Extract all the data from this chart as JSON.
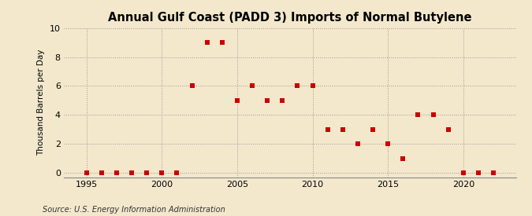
{
  "title": "Annual Gulf Coast (PADD 3) Imports of Normal Butylene",
  "ylabel": "Thousand Barrels per Day",
  "source": "Source: U.S. Energy Information Administration",
  "background_color": "#f3e8cc",
  "plot_bg_color": "#f3e8cc",
  "marker_color": "#cc0000",
  "marker_size": 16,
  "xlim": [
    1993.5,
    2023.5
  ],
  "ylim": [
    -0.3,
    10
  ],
  "yticks": [
    0,
    2,
    4,
    6,
    8,
    10
  ],
  "xticks": [
    1995,
    2000,
    2005,
    2010,
    2015,
    2020
  ],
  "data": {
    "1995": 0,
    "1996": 0,
    "1997": 0,
    "1998": 0,
    "1999": 0,
    "2000": 0,
    "2001": 0,
    "2002": 6,
    "2003": 9,
    "2004": 9,
    "2005": 5,
    "2006": 6,
    "2007": 5,
    "2008": 5,
    "2009": 6,
    "2010": 6,
    "2011": 3,
    "2012": 3,
    "2013": 2,
    "2014": 3,
    "2015": 2,
    "2016": 1,
    "2017": 4,
    "2018": 4,
    "2019": 3,
    "2020": 0,
    "2021": 0,
    "2022": 0
  }
}
